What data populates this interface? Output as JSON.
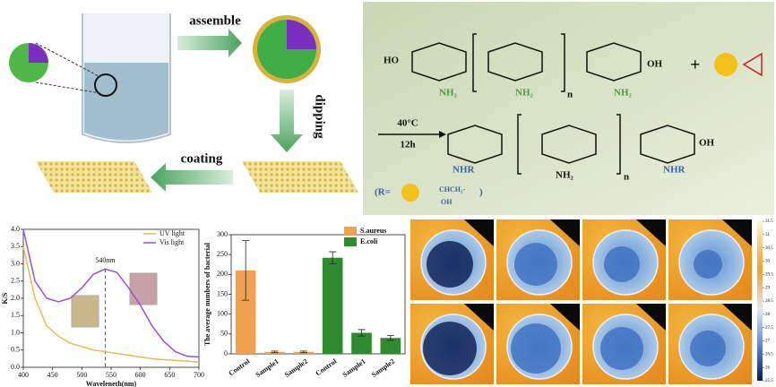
{
  "schematic": {
    "steps": [
      "assemble",
      "dipping",
      "coating"
    ]
  },
  "reaction": {
    "plus": "+",
    "conditions": [
      "40°C",
      "12h"
    ],
    "labels": {
      "ho": "HO",
      "oh": "OH",
      "nh2": "NH₂",
      "nhr": "NHR",
      "n": "n"
    },
    "r_group": {
      "open": "(R=",
      "chain": "CHCH₂-",
      "oh": "OH",
      "close": ")"
    }
  },
  "chart_data": [
    {
      "type": "line",
      "xlabel": "Waveleneth(nm)",
      "ylabel": "K/S",
      "x": [
        400,
        420,
        440,
        460,
        480,
        500,
        520,
        540,
        560,
        580,
        600,
        620,
        640,
        660,
        680,
        700
      ],
      "series": [
        {
          "name": "UV light",
          "color": "#f0b94b",
          "values": [
            3.5,
            2.0,
            1.2,
            0.9,
            0.7,
            0.6,
            0.5,
            0.45,
            0.4,
            0.35,
            0.3,
            0.25,
            0.22,
            0.2,
            0.18,
            0.15
          ]
        },
        {
          "name": "Vis light",
          "color": "#9b4fd6",
          "values": [
            4.0,
            2.5,
            2.0,
            1.9,
            2.0,
            2.3,
            2.7,
            2.85,
            2.75,
            2.3,
            1.8,
            1.2,
            0.75,
            0.45,
            0.32,
            0.3
          ]
        }
      ],
      "annotation": {
        "text": "540nm",
        "x": 540,
        "y": 2.85
      },
      "xlim": [
        400,
        700
      ],
      "xticks": [
        400,
        450,
        500,
        550,
        600,
        650,
        700
      ],
      "ylim": [
        0,
        4
      ],
      "yticks": [
        {
          "value": 0,
          "label": "0.0"
        },
        0.5,
        {
          "value": 1,
          "label": "1.0"
        },
        1.5,
        {
          "value": 2,
          "label": "2.0"
        },
        2.5,
        {
          "value": 3,
          "label": "3.0"
        },
        3.5,
        {
          "value": 4,
          "label": "4.0"
        }
      ],
      "legend": "upper right"
    },
    {
      "type": "bar",
      "ylabel": "The average numbers of bacterial",
      "categories": [
        "Control",
        "Sample1",
        "Sample2",
        "Control",
        "Sample1",
        "Sample2"
      ],
      "series": [
        {
          "name": "S.aureus",
          "color": "#f0a050",
          "values": [
            210,
            5,
            5,
            null,
            null,
            null
          ],
          "errors": [
            75,
            2,
            2,
            null,
            null,
            null
          ]
        },
        {
          "name": "E.coli",
          "color": "#2e8b2e",
          "values": [
            null,
            null,
            null,
            242,
            53,
            40
          ],
          "errors": [
            null,
            null,
            null,
            15,
            8,
            6
          ]
        }
      ],
      "ylim": [
        0,
        300
      ],
      "yticks": [
        0,
        50,
        100,
        150,
        200,
        250,
        300
      ],
      "legend": "upper right"
    }
  ],
  "thermal": {
    "colorbar_ticks": [
      31.5,
      31,
      30.5,
      30,
      29.5,
      29,
      28.5,
      28,
      27.5,
      27,
      26.5,
      26,
      25.5
    ],
    "colorbar_lim": [
      25.5,
      31.5
    ]
  }
}
